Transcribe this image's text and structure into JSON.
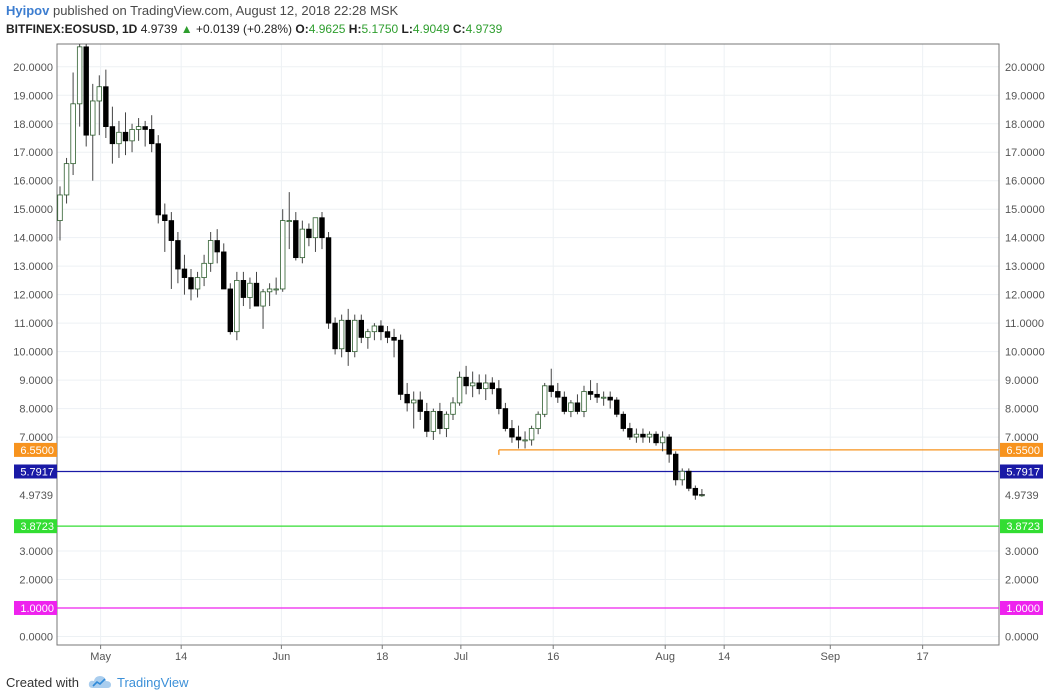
{
  "header": {
    "author": "Hyipov",
    "published": "published on TradingView.com, August 12, 2018 22:28 MSK",
    "symbol": "BITFINEX:EOSUSD, 1D",
    "last": "4.9739",
    "change": "+0.0139 (+0.28%)",
    "open_label": "O:",
    "open": "4.9625",
    "high_label": "H:",
    "high": "5.1750",
    "low_label": "L:",
    "low": "4.9049",
    "close_label": "C:",
    "close": "4.9739"
  },
  "footer": {
    "created": "Created with",
    "brand": "TradingView"
  },
  "colors": {
    "up": "#ffffff",
    "up_border": "#2f5f2f",
    "down": "#000000",
    "wick": "#444444"
  },
  "chart_data": {
    "type": "candlestick",
    "symbol": "BITFINEX:EOSUSD",
    "interval": "1D",
    "ylim": [
      -0.3,
      20.8
    ],
    "y_ticks": [
      "20.0000",
      "19.0000",
      "18.0000",
      "17.0000",
      "16.0000",
      "15.0000",
      "14.0000",
      "13.0000",
      "12.0000",
      "11.0000",
      "10.0000",
      "9.0000",
      "8.0000",
      "7.0000",
      "3.0000",
      "2.0000",
      "0.0000"
    ],
    "x_ticks": [
      "May",
      "14",
      "Jun",
      "18",
      "Jul",
      "16",
      "Aug",
      "14",
      "Sep",
      "17"
    ],
    "last_price_label": "4.9739",
    "horizontal_lines": [
      {
        "value": 6.55,
        "label": "6.5500",
        "color": "#f7931e",
        "start_index": 67
      },
      {
        "value": 5.7917,
        "label": "5.7917",
        "color": "#1a1aa6",
        "start_index": 0
      },
      {
        "value": 3.8723,
        "label": "3.8723",
        "color": "#33dd33",
        "start_index": 0
      },
      {
        "value": 1.0,
        "label": "1.0000",
        "color": "#ee22ee",
        "start_index": 0
      }
    ],
    "candles": [
      [
        14.6,
        15.8,
        13.9,
        15.5
      ],
      [
        15.5,
        16.8,
        15.2,
        16.6
      ],
      [
        16.6,
        19.8,
        16.2,
        18.7
      ],
      [
        18.7,
        21.5,
        17.9,
        20.7
      ],
      [
        20.7,
        21.8,
        17.2,
        17.6
      ],
      [
        17.6,
        19.4,
        16.0,
        18.8
      ],
      [
        18.8,
        19.7,
        17.6,
        19.3
      ],
      [
        19.3,
        19.9,
        17.5,
        17.9
      ],
      [
        17.9,
        18.6,
        16.6,
        17.3
      ],
      [
        17.3,
        18.1,
        16.8,
        17.7
      ],
      [
        17.7,
        18.4,
        16.9,
        17.4
      ],
      [
        17.4,
        18.0,
        17.0,
        17.8
      ],
      [
        17.8,
        18.2,
        17.4,
        17.9
      ],
      [
        17.9,
        18.1,
        17.2,
        17.8
      ],
      [
        17.8,
        18.3,
        17.0,
        17.3
      ],
      [
        17.3,
        17.6,
        14.5,
        14.8
      ],
      [
        14.8,
        15.2,
        13.5,
        14.6
      ],
      [
        14.6,
        14.9,
        12.2,
        13.9
      ],
      [
        13.9,
        14.2,
        12.4,
        12.9
      ],
      [
        12.9,
        13.4,
        12.0,
        12.6
      ],
      [
        12.6,
        12.9,
        11.8,
        12.2
      ],
      [
        12.2,
        12.8,
        11.9,
        12.6
      ],
      [
        12.6,
        13.4,
        12.3,
        13.1
      ],
      [
        13.1,
        14.2,
        12.8,
        13.9
      ],
      [
        13.9,
        14.3,
        13.1,
        13.5
      ],
      [
        13.5,
        13.8,
        12.2,
        12.2
      ],
      [
        12.2,
        12.4,
        10.6,
        10.7
      ],
      [
        10.7,
        12.8,
        10.4,
        12.5
      ],
      [
        12.5,
        12.8,
        11.6,
        11.9
      ],
      [
        11.9,
        12.6,
        11.5,
        12.4
      ],
      [
        12.4,
        12.8,
        11.6,
        11.6
      ],
      [
        11.6,
        12.2,
        10.8,
        12.1
      ],
      [
        12.1,
        12.4,
        11.6,
        12.2
      ],
      [
        12.2,
        12.6,
        12.0,
        12.2
      ],
      [
        12.2,
        15.0,
        12.1,
        14.6
      ],
      [
        14.6,
        15.6,
        13.6,
        14.6
      ],
      [
        14.6,
        14.9,
        13.2,
        13.3
      ],
      [
        13.3,
        14.6,
        13.1,
        14.3
      ],
      [
        14.3,
        14.5,
        13.7,
        14.0
      ],
      [
        14.0,
        14.7,
        13.5,
        14.7
      ],
      [
        14.7,
        14.9,
        13.6,
        14.0
      ],
      [
        14.0,
        14.2,
        10.8,
        11.0
      ],
      [
        11.0,
        11.2,
        9.9,
        10.1
      ],
      [
        10.1,
        11.3,
        9.8,
        11.1
      ],
      [
        11.1,
        11.5,
        9.5,
        10.0
      ],
      [
        10.0,
        11.3,
        9.8,
        11.1
      ],
      [
        11.1,
        11.3,
        10.3,
        10.5
      ],
      [
        10.5,
        10.8,
        10.1,
        10.7
      ],
      [
        10.7,
        11.0,
        10.4,
        10.9
      ],
      [
        10.9,
        11.1,
        10.4,
        10.7
      ],
      [
        10.7,
        10.9,
        10.3,
        10.5
      ],
      [
        10.5,
        10.8,
        9.8,
        10.4
      ],
      [
        10.4,
        10.6,
        8.3,
        8.5
      ],
      [
        8.5,
        8.9,
        7.9,
        8.2
      ],
      [
        8.2,
        8.6,
        7.3,
        8.3
      ],
      [
        8.3,
        8.6,
        7.6,
        7.9
      ],
      [
        7.9,
        8.2,
        7.0,
        7.2
      ],
      [
        7.2,
        8.0,
        6.9,
        7.9
      ],
      [
        7.9,
        8.2,
        7.1,
        7.3
      ],
      [
        7.3,
        7.9,
        7.0,
        7.8
      ],
      [
        7.8,
        8.4,
        7.6,
        8.2
      ],
      [
        8.2,
        9.3,
        8.1,
        9.1
      ],
      [
        9.1,
        9.5,
        8.5,
        8.8
      ],
      [
        8.8,
        9.3,
        8.4,
        8.9
      ],
      [
        8.9,
        9.2,
        8.5,
        8.7
      ],
      [
        8.7,
        9.2,
        8.3,
        8.9
      ],
      [
        8.9,
        9.1,
        8.5,
        8.7
      ],
      [
        8.7,
        9.0,
        7.8,
        8.0
      ],
      [
        8.0,
        8.2,
        7.2,
        7.3
      ],
      [
        7.3,
        7.6,
        6.8,
        7.0
      ],
      [
        7.0,
        7.4,
        6.6,
        6.9
      ],
      [
        6.9,
        7.2,
        6.6,
        6.9
      ],
      [
        6.9,
        7.4,
        6.7,
        7.3
      ],
      [
        7.3,
        7.9,
        7.1,
        7.8
      ],
      [
        7.8,
        8.9,
        7.7,
        8.8
      ],
      [
        8.8,
        9.4,
        8.4,
        8.6
      ],
      [
        8.6,
        8.9,
        8.2,
        8.4
      ],
      [
        8.4,
        8.6,
        7.8,
        7.9
      ],
      [
        7.9,
        8.3,
        7.7,
        8.2
      ],
      [
        8.2,
        8.5,
        7.8,
        7.9
      ],
      [
        7.9,
        8.8,
        7.7,
        8.6
      ],
      [
        8.6,
        9.0,
        8.3,
        8.5
      ],
      [
        8.5,
        8.9,
        8.2,
        8.4
      ],
      [
        8.4,
        8.6,
        8.1,
        8.4
      ],
      [
        8.4,
        8.6,
        8.0,
        8.3
      ],
      [
        8.3,
        8.4,
        7.7,
        7.8
      ],
      [
        7.8,
        7.9,
        7.2,
        7.3
      ],
      [
        7.3,
        7.5,
        6.9,
        7.0
      ],
      [
        7.0,
        7.3,
        6.8,
        7.1
      ],
      [
        7.1,
        7.3,
        6.8,
        7.0
      ],
      [
        7.0,
        7.2,
        6.8,
        7.1
      ],
      [
        7.1,
        7.2,
        6.7,
        6.8
      ],
      [
        6.8,
        7.2,
        6.5,
        7.0
      ],
      [
        7.0,
        7.1,
        6.1,
        6.4
      ],
      [
        6.4,
        6.5,
        5.3,
        5.5
      ],
      [
        5.5,
        5.9,
        5.3,
        5.8
      ],
      [
        5.8,
        5.9,
        5.1,
        5.2
      ],
      [
        5.2,
        5.3,
        4.8,
        4.96
      ],
      [
        4.96,
        5.175,
        4.9049,
        4.9739
      ]
    ]
  }
}
